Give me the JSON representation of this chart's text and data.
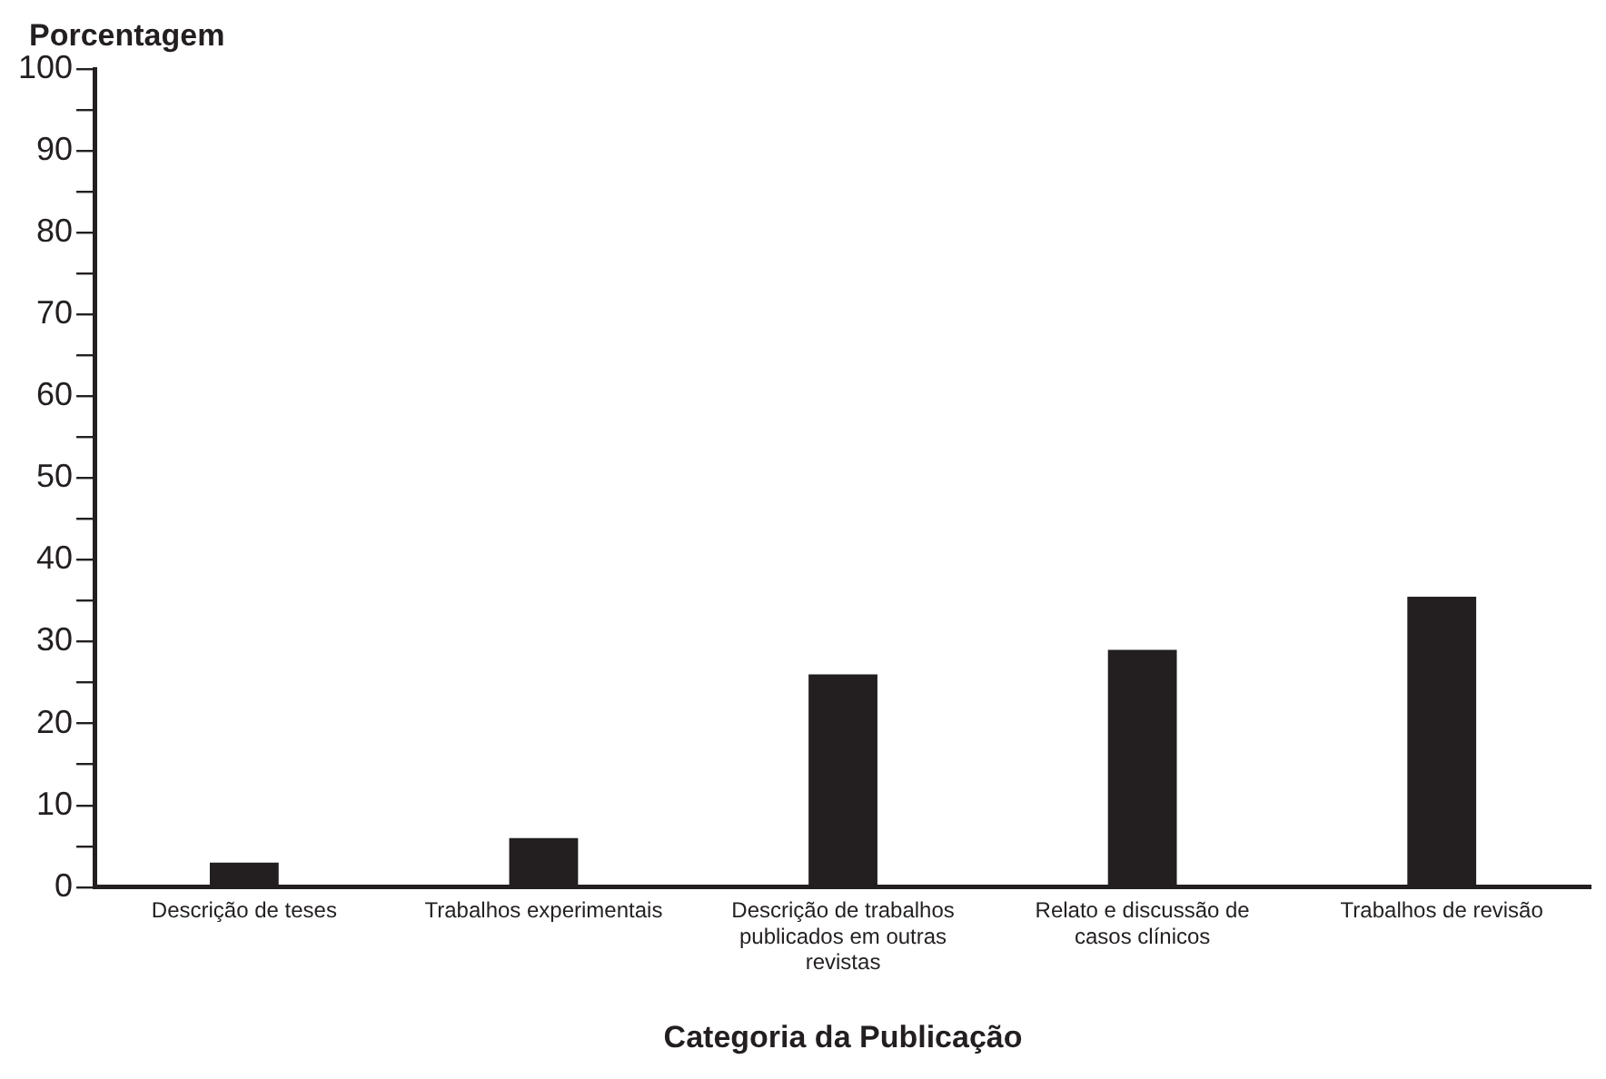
{
  "chart_data": {
    "type": "bar",
    "ylabel": "Porcentagem",
    "xlabel": "Categoria da Publicação",
    "categories": [
      "Descrição de teses",
      "Trabalhos experimentais",
      "Descrição de trabalhos publicados em outras revistas",
      "Relato e discussão de casos clínicos",
      "Trabalhos de revisão"
    ],
    "values": [
      3,
      6,
      26,
      29,
      35.5
    ],
    "color": "#231f20",
    "ylim": [
      0,
      100
    ],
    "yticks": [
      0,
      {
        "value": 5,
        "label": null
      },
      10,
      {
        "value": 15,
        "label": null
      },
      20,
      {
        "value": 25,
        "label": null
      },
      30,
      {
        "value": 35,
        "label": null
      },
      40,
      {
        "value": 45,
        "label": null
      },
      50,
      {
        "value": 55,
        "label": null
      },
      60,
      {
        "value": 65,
        "label": null
      },
      70,
      {
        "value": 75,
        "label": null
      },
      80,
      {
        "value": 85,
        "label": null
      },
      90,
      {
        "value": 95,
        "label": null
      },
      100
    ],
    "grid": false,
    "legend": false
  }
}
